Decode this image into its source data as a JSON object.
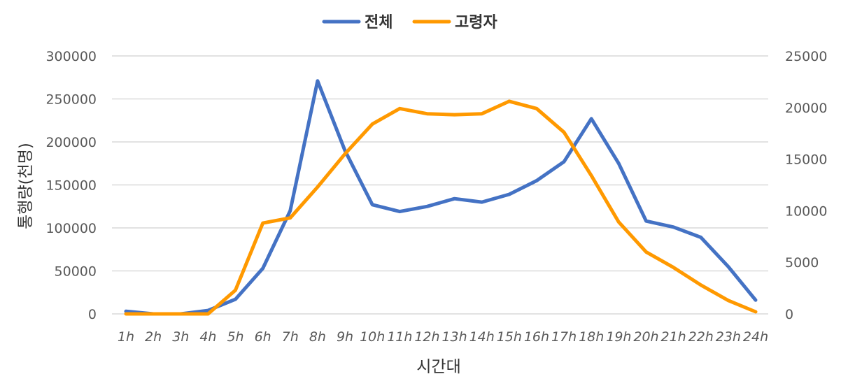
{
  "chart_data": {
    "type": "line",
    "xlabel": "시간대",
    "ylabel": "통행량(천명)",
    "categories": [
      "1h",
      "2h",
      "3h",
      "4h",
      "5h",
      "6h",
      "7h",
      "8h",
      "9h",
      "10h",
      "11h",
      "12h",
      "13h",
      "14h",
      "15h",
      "16h",
      "17h",
      "18h",
      "19h",
      "20h",
      "21h",
      "22h",
      "23h",
      "24h"
    ],
    "ylim_left": [
      0,
      300000
    ],
    "yticks_left": [
      "0",
      "50000",
      "100000",
      "150000",
      "200000",
      "250000",
      "300000"
    ],
    "ylim_right": [
      0,
      25000
    ],
    "yticks_right": [
      "0",
      "5000",
      "10000",
      "15000",
      "20000",
      "25000"
    ],
    "grid": true,
    "legend_position": "top-center",
    "series": [
      {
        "name": "전체",
        "axis": "left",
        "color": "#4472c4",
        "values": [
          3000,
          0,
          0,
          4000,
          17000,
          53000,
          120000,
          271000,
          190000,
          127000,
          119000,
          125000,
          134000,
          130000,
          139000,
          155000,
          177000,
          227000,
          175000,
          108000,
          101000,
          89000,
          55000,
          16000
        ]
      },
      {
        "name": "고령자",
        "axis": "right",
        "color": "#ff9900",
        "values": [
          0,
          0,
          0,
          0,
          2300,
          8800,
          9300,
          12300,
          15500,
          18400,
          19900,
          19400,
          19300,
          19400,
          20600,
          19900,
          17600,
          13400,
          8900,
          6000,
          4500,
          2800,
          1300,
          200
        ]
      }
    ]
  }
}
